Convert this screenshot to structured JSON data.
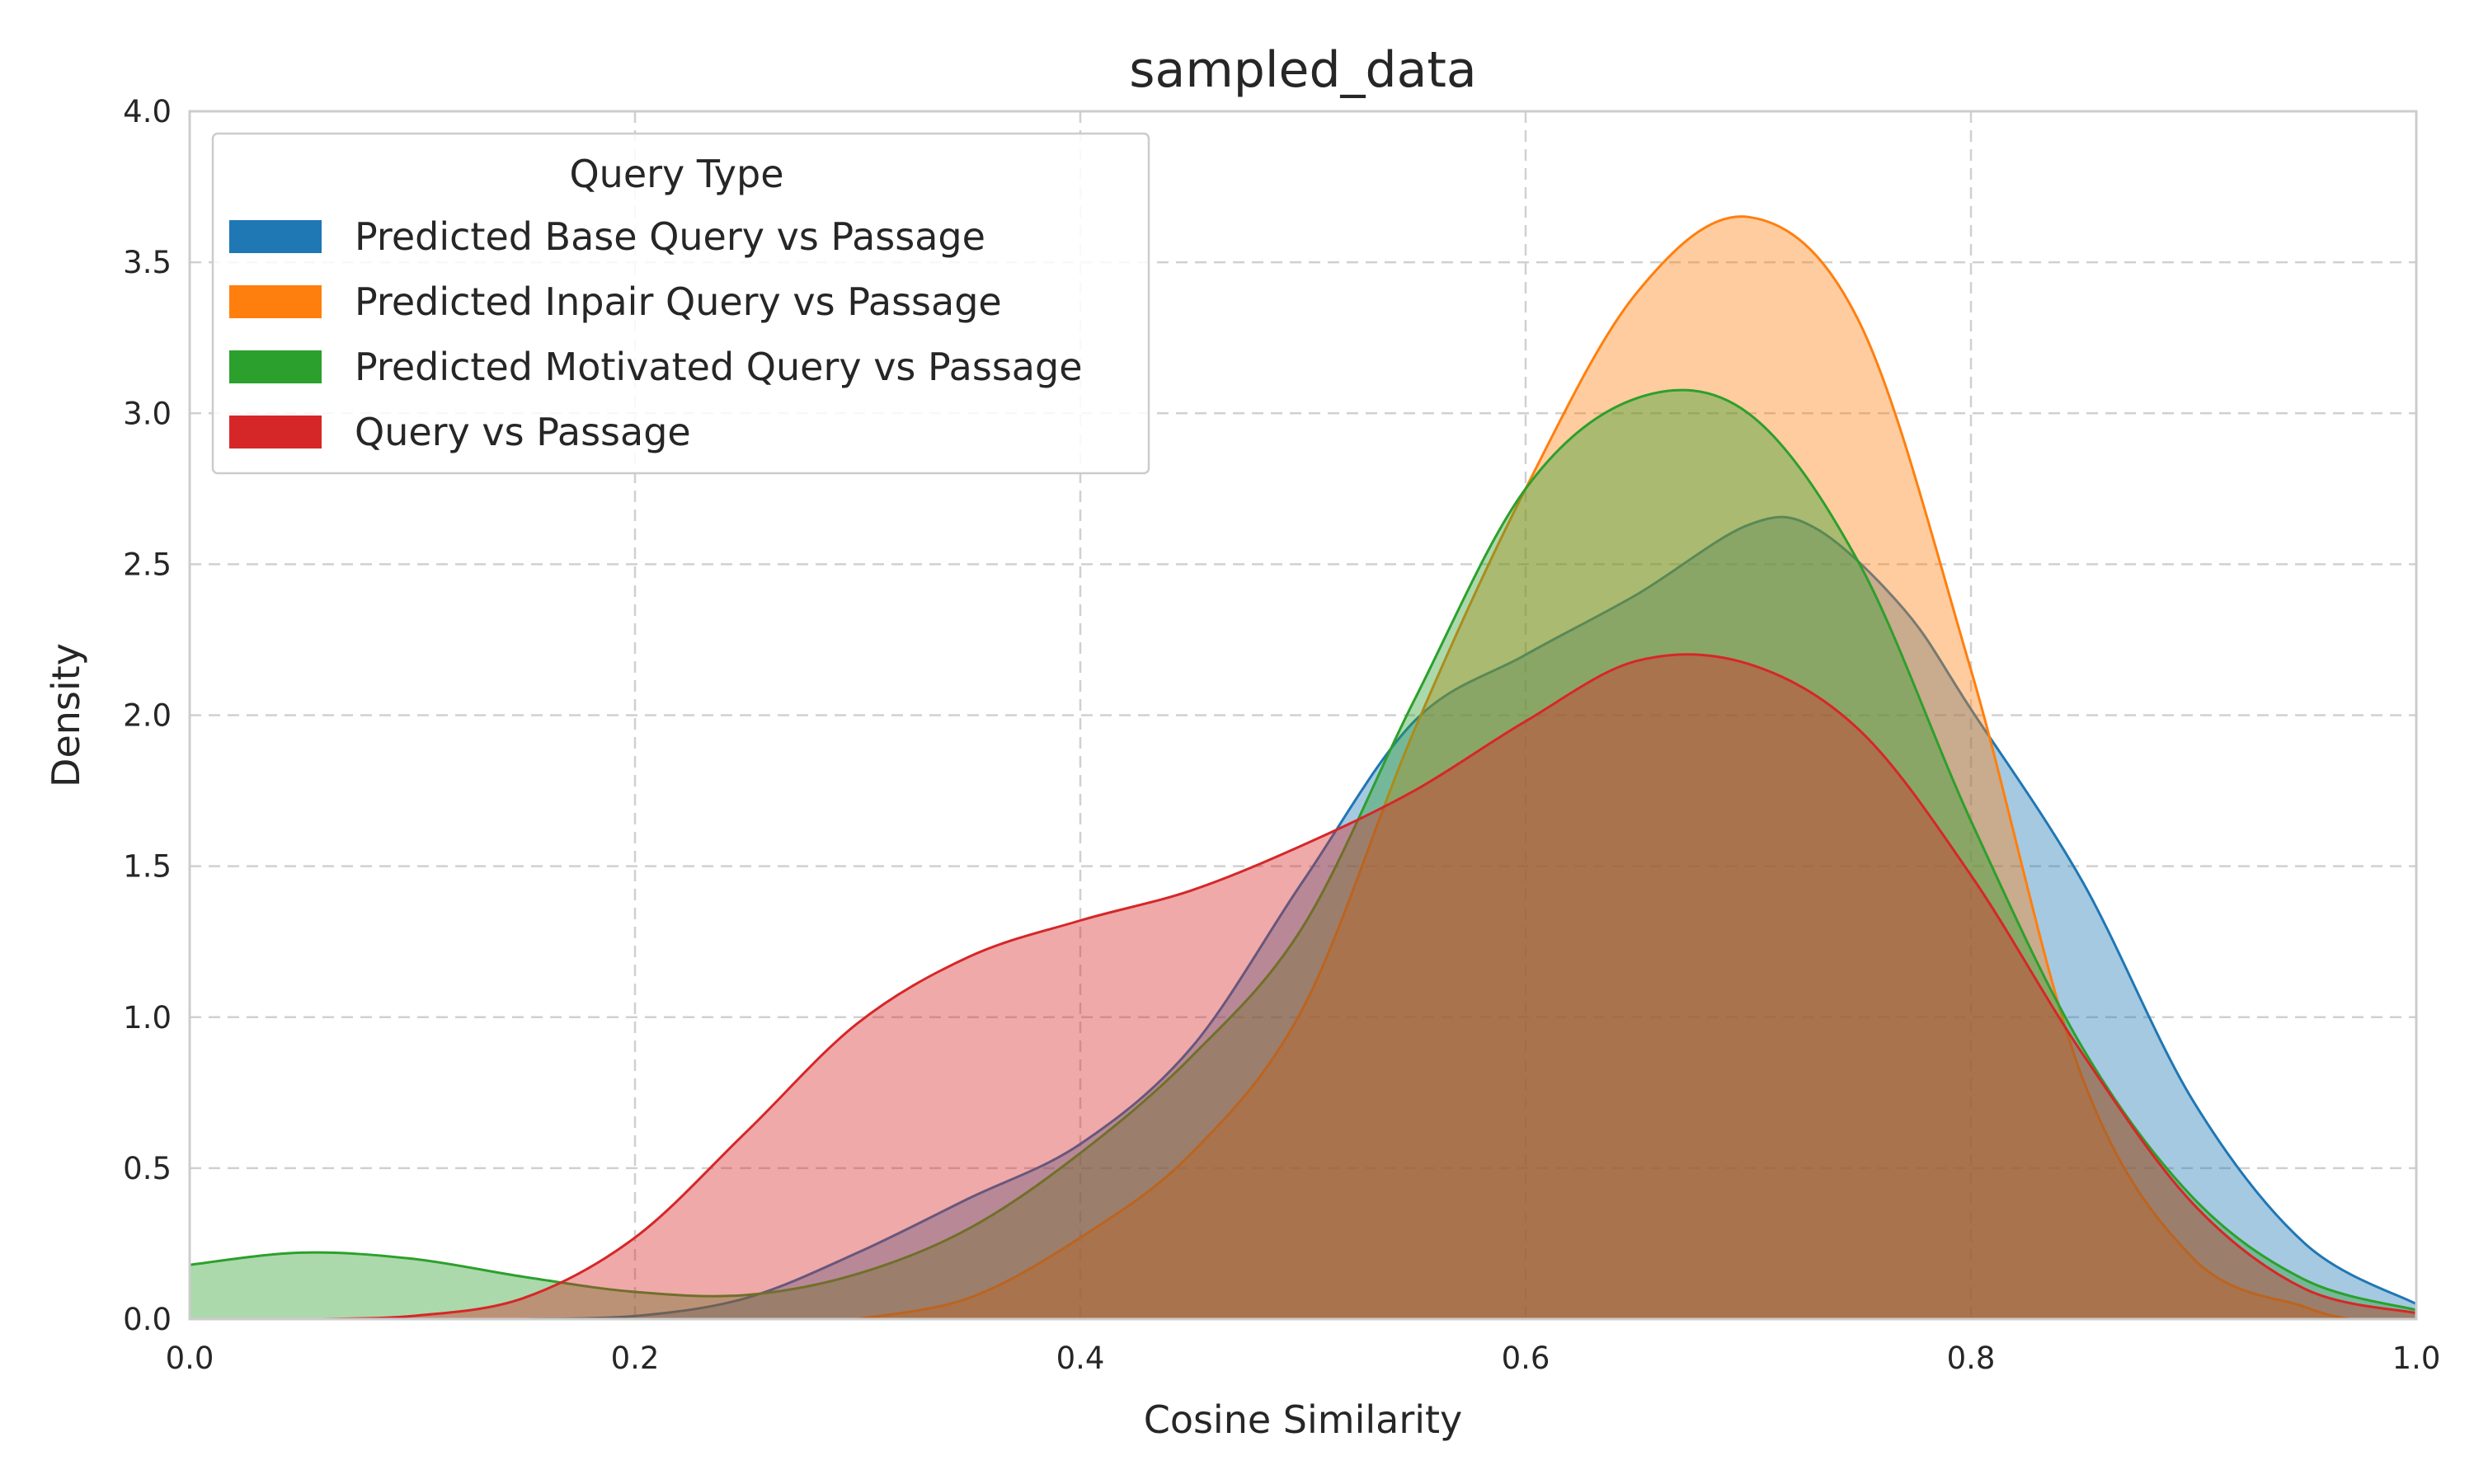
{
  "chart_data": {
    "type": "area",
    "title": "sampled_data",
    "xlabel": "Cosine Similarity",
    "ylabel": "Density",
    "xlim": [
      0.0,
      1.0
    ],
    "ylim": [
      0.0,
      4.0
    ],
    "x_ticks": [
      "0.0",
      "0.2",
      "0.4",
      "0.6",
      "0.8",
      "1.0"
    ],
    "y_ticks": [
      "0.0",
      "0.5",
      "1.0",
      "1.5",
      "2.0",
      "2.5",
      "3.0",
      "3.5",
      "4.0"
    ],
    "grid": true,
    "legend": {
      "title": "Query Type",
      "placement": "top-left"
    },
    "series": [
      {
        "name": "Predicted Base Query vs Passage",
        "color": "#1f77b4",
        "points": [
          [
            0.15,
            0.0
          ],
          [
            0.2,
            0.01
          ],
          [
            0.25,
            0.07
          ],
          [
            0.3,
            0.22
          ],
          [
            0.35,
            0.4
          ],
          [
            0.4,
            0.58
          ],
          [
            0.45,
            0.9
          ],
          [
            0.5,
            1.45
          ],
          [
            0.55,
            1.98
          ],
          [
            0.6,
            2.2
          ],
          [
            0.65,
            2.4
          ],
          [
            0.7,
            2.63
          ],
          [
            0.73,
            2.62
          ],
          [
            0.77,
            2.35
          ],
          [
            0.8,
            2.02
          ],
          [
            0.85,
            1.45
          ],
          [
            0.9,
            0.72
          ],
          [
            0.95,
            0.25
          ],
          [
            1.0,
            0.05
          ]
        ]
      },
      {
        "name": "Predicted Inpair Query vs Passage",
        "color": "#ff7f0e",
        "points": [
          [
            0.3,
            0.0
          ],
          [
            0.35,
            0.07
          ],
          [
            0.4,
            0.27
          ],
          [
            0.45,
            0.55
          ],
          [
            0.5,
            1.03
          ],
          [
            0.55,
            1.95
          ],
          [
            0.6,
            2.75
          ],
          [
            0.65,
            3.4
          ],
          [
            0.7,
            3.65
          ],
          [
            0.75,
            3.3
          ],
          [
            0.8,
            2.15
          ],
          [
            0.85,
            0.8
          ],
          [
            0.9,
            0.2
          ],
          [
            0.95,
            0.04
          ],
          [
            0.97,
            0.0
          ]
        ]
      },
      {
        "name": "Predicted Motivated Query vs Passage",
        "color": "#2ca02c",
        "points": [
          [
            0.0,
            0.18
          ],
          [
            0.05,
            0.22
          ],
          [
            0.1,
            0.2
          ],
          [
            0.15,
            0.14
          ],
          [
            0.2,
            0.09
          ],
          [
            0.25,
            0.08
          ],
          [
            0.3,
            0.15
          ],
          [
            0.35,
            0.3
          ],
          [
            0.4,
            0.55
          ],
          [
            0.45,
            0.87
          ],
          [
            0.5,
            1.3
          ],
          [
            0.55,
            2.05
          ],
          [
            0.6,
            2.75
          ],
          [
            0.65,
            3.05
          ],
          [
            0.7,
            3.0
          ],
          [
            0.75,
            2.5
          ],
          [
            0.8,
            1.65
          ],
          [
            0.85,
            0.9
          ],
          [
            0.9,
            0.4
          ],
          [
            0.95,
            0.13
          ],
          [
            1.0,
            0.03
          ]
        ]
      },
      {
        "name": "Query vs Passage",
        "color": "#d62728",
        "points": [
          [
            0.06,
            0.0
          ],
          [
            0.1,
            0.01
          ],
          [
            0.15,
            0.07
          ],
          [
            0.2,
            0.27
          ],
          [
            0.25,
            0.62
          ],
          [
            0.3,
            0.98
          ],
          [
            0.35,
            1.2
          ],
          [
            0.4,
            1.32
          ],
          [
            0.45,
            1.42
          ],
          [
            0.5,
            1.57
          ],
          [
            0.55,
            1.75
          ],
          [
            0.6,
            1.98
          ],
          [
            0.65,
            2.18
          ],
          [
            0.7,
            2.17
          ],
          [
            0.75,
            1.95
          ],
          [
            0.8,
            1.47
          ],
          [
            0.85,
            0.88
          ],
          [
            0.9,
            0.38
          ],
          [
            0.95,
            0.1
          ],
          [
            1.0,
            0.02
          ]
        ]
      }
    ]
  }
}
